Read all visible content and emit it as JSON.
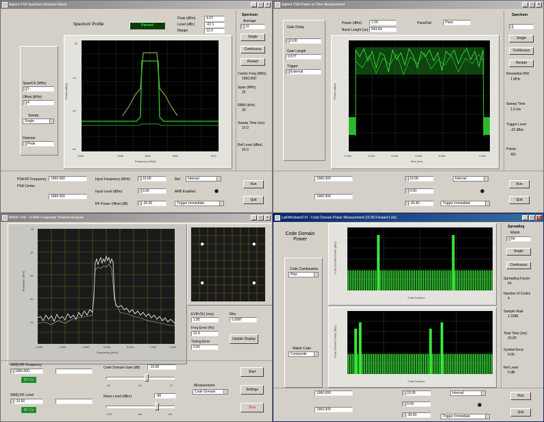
{
  "colors": {
    "trace": "#2fd12f",
    "trace_dim": "#7dc243",
    "bar": "#39e639",
    "bg_plot": "#000000",
    "title_active": "#0a246a",
    "title_inactive": "#808080"
  },
  "w1": {
    "title": "Agilent VSA Spectrum Emission Mask",
    "header_label": "Spectrum Profile",
    "status": "Passed",
    "readouts": [
      {
        "label": "Peak (dBm)",
        "value": "4.07"
      },
      {
        "label": "Level (dBc)",
        "value": "-62.1"
      },
      {
        "label": "Margin",
        "value": "12.0"
      }
    ],
    "left_fields": [
      {
        "label": "Span/Ch (MHz)",
        "value": "5"
      },
      {
        "label": "Offset (MHz)",
        "value": "4"
      },
      {
        "label": "Sweep",
        "value": "Single"
      },
      {
        "label": "Detector",
        "value": "Peak"
      }
    ],
    "right_group": "Spectrum",
    "right_fields": [
      {
        "label": "Average",
        "value": "10"
      }
    ],
    "right_buttons": [
      "Single",
      "Continuous",
      "Restart"
    ],
    "right_info": [
      "Center Freq (MHz)",
      "1960.000",
      "Span (MHz)",
      "25",
      "RBW (kHz)",
      "30",
      "Sweep Time (ms)",
      "10.0",
      "Ref Level (dBm)",
      "20.0"
    ],
    "x_ticks": [
      "1948",
      "1952",
      "1956",
      "1960",
      "1964",
      "1968",
      "1972"
    ],
    "y_ticks": [
      "20",
      "10",
      "0",
      "-10",
      "-20",
      "-30",
      "-40",
      "-50",
      "-60",
      "-70",
      "-80"
    ],
    "x_label": "Frequency (MHz)",
    "y_label": "Power (dBm)",
    "bottom": {
      "f1": "1960.000",
      "f2": "1960.000",
      "f3": "10.00",
      "f4": "0.00",
      "f5": "-30.00",
      "sel1": "Internal",
      "sel2": "Trigger Immediate",
      "btn1": "Run",
      "btn2": "Quit",
      "l1": "PSA RF Frequency",
      "l2": "PSA Center",
      "l3": "Input Frequency (MHz)",
      "l4": "Input Level (dBm)",
      "l5": "RF Power Offset (dB)",
      "l6": "Ref",
      "l7": "ARB Enabled"
    }
  },
  "w2": {
    "title": "Agilent VSA Power vs Time Measurement",
    "fields": [
      {
        "label": "Gate Delay",
        "value": "0.00"
      },
      {
        "label": "Gate Length",
        "value": "0.577"
      },
      {
        "label": "Trigger",
        "value": "External"
      }
    ],
    "readouts": [
      {
        "label": "Power (dBm)",
        "value": "2.25"
      },
      {
        "label": "Burst Length (us)",
        "value": "543.64"
      },
      {
        "label": "Pass/Fail",
        "value": "Pass"
      }
    ],
    "right_group": "Spectrum",
    "right_buttons": [
      "Single",
      "Continuous",
      "Restart"
    ],
    "right_info": [
      "Resolution BW",
      "1 MHz",
      "Sweep Time",
      "1.0 ms",
      "Trigger Level",
      "-20 dBm",
      "Points",
      "401"
    ],
    "x_ticks": [
      "0.000",
      "0.200",
      "0.400",
      "0.600",
      "0.800",
      "1.000"
    ],
    "y_label": "Power (dBm)",
    "x_label": "Time (ms)",
    "bottom": {
      "f1": "1960.000",
      "f2": "1960.000",
      "f3": "10.00",
      "f4": "0.00",
      "f5": "-30.00",
      "sel1": "Internal",
      "sel2": "Trigger Immediate",
      "btn1": "Run",
      "btn2": "Quit"
    }
  },
  "w3": {
    "title": "89600 VSA - CDMA Composite Channel Analysis",
    "x_ticks": [
      "-1.500",
      "-1.000",
      "-0.500",
      "0.000",
      "0.500",
      "1.000",
      "1.500"
    ],
    "y_ticks": [
      "10",
      "0",
      "-10",
      "-20",
      "-30",
      "-40",
      "-50",
      "-60",
      "-70",
      "-80"
    ],
    "x_label": "Frequency (MHz)",
    "y_label": "Amplitude (dBm)",
    "const_points": [
      {
        "x": -0.7,
        "y": 0.55
      },
      {
        "x": 0.7,
        "y": 0.55
      },
      {
        "x": -0.7,
        "y": -0.5
      },
      {
        "x": 0.7,
        "y": -0.5
      }
    ],
    "info": [
      {
        "label": "EVM (%) (rms)",
        "value": "1.85"
      },
      {
        "label": "Rho",
        "value": "0.9997"
      },
      {
        "label": "Freq Error (Hz)",
        "value": "12.4"
      },
      {
        "label": "Timing Error",
        "value": "0.00"
      }
    ],
    "btn_update": "Update Display",
    "slider1": {
      "label": "Code Domain Gain (dB)",
      "value": "-10.00",
      "ticks": [
        "-20",
        "-15",
        "-10",
        "-5",
        "0"
      ],
      "level": 0.6
    },
    "slider2": {
      "label": "Noise Level (dBm)",
      "value": "-80",
      "ticks": [
        "-100",
        "-90",
        "-80",
        "-70",
        "-60"
      ],
      "level": 0.75
    },
    "left": [
      {
        "label": "SMIQ RF Frequency",
        "value": "1960.000"
      },
      {
        "label": "SMIQ RF Level",
        "value": "-10.00"
      }
    ],
    "green1": "RF On",
    "green2": "RF On",
    "mode_label": "Measurement",
    "mode_value": "Code Domain",
    "right_btns": [
      "Start",
      "Settings",
      "Stop"
    ]
  },
  "w4": {
    "title": "LabWindows/CVI - Code Domain Power Measurement (IS-95 Forward Link)",
    "panel_title": "Code Domain Power",
    "sel1_label": "Code Combination",
    "sel1_value": "Pilot",
    "sel2_label": "Walsh Code",
    "sel2_value": "Composite",
    "bars1": [
      1,
      1,
      1,
      1,
      1,
      1,
      1,
      1,
      1,
      1,
      1,
      1,
      1,
      1,
      1,
      1,
      1,
      1,
      1,
      1,
      1,
      1,
      1,
      1,
      1,
      1,
      1,
      1,
      1,
      1,
      1,
      1,
      1,
      1,
      1,
      1,
      1,
      1,
      1,
      1,
      1,
      1,
      1,
      1,
      1,
      1,
      1,
      1,
      1,
      1,
      1,
      1,
      1,
      1,
      1,
      1,
      1,
      1,
      1,
      1,
      1,
      1,
      1,
      1
    ],
    "peaks1": [
      {
        "code": 13,
        "value": 0.88
      },
      {
        "code": 46,
        "value": 0.88
      }
    ],
    "bars2_peaks": [
      {
        "code": 3,
        "value": 0.72
      },
      {
        "code": 5,
        "value": 0.82
      },
      {
        "code": 36,
        "value": 0.72
      },
      {
        "code": 41,
        "value": 0.82
      }
    ],
    "x_label": "Code Number",
    "y_label": "Code Domain Power (dBc)",
    "y_ticks": [
      "0",
      "-10",
      "-20",
      "-30",
      "-40",
      "-50",
      "-60"
    ],
    "right_group": "Spreading",
    "right_fields": [
      {
        "label": "Walsh",
        "value": "64"
      }
    ],
    "right_buttons": [
      "Single",
      "Continuous"
    ],
    "right_info": [
      "Spreading Factor",
      "64",
      "Number of Codes",
      "4",
      "Sample Rate",
      "1.2288",
      "Total Time (ms)",
      "20.00",
      "Symbol Error",
      "0.00",
      "Ref Level",
      "0 dB"
    ],
    "bottom": {
      "f1": "1960.000",
      "f2": "1960.000",
      "f3": "10.00",
      "f4": "0.00",
      "f5": "-30.00",
      "sel1": "Internal",
      "sel2": "Trigger Immediate",
      "btn1": "Run",
      "btn2": "Quit"
    }
  }
}
